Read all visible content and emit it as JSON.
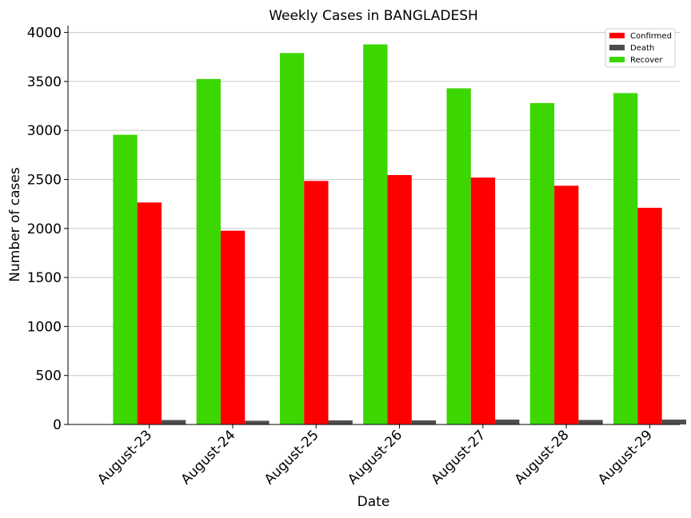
{
  "chart_data": {
    "type": "bar",
    "title": "Weekly Cases in BANGLADESH",
    "xlabel": "Date",
    "ylabel": "Number of cases",
    "categories": [
      "August-23",
      "August-24",
      "August-25",
      "August-26",
      "August-27",
      "August-28",
      "August-29"
    ],
    "series": [
      {
        "name": "Confirmed",
        "color": "#ff0000",
        "values": [
          2265,
          1977,
          2485,
          2545,
          2519,
          2436,
          2211
        ]
      },
      {
        "name": "Death",
        "color": "#4d4d4d",
        "values": [
          45,
          38,
          42,
          42,
          50,
          46,
          50
        ]
      },
      {
        "name": "Recover",
        "color": "#3cd600",
        "values": [
          2956,
          3525,
          3790,
          3878,
          3430,
          3279,
          3381
        ]
      }
    ],
    "bar_order": [
      "Recover",
      "Confirmed",
      "Death"
    ],
    "ylim": [
      0,
      4070
    ],
    "yticks": [
      0,
      500,
      1000,
      1500,
      2000,
      2500,
      3000,
      3500,
      4000
    ],
    "grid": "horizontal",
    "legend_position": "top-right"
  }
}
